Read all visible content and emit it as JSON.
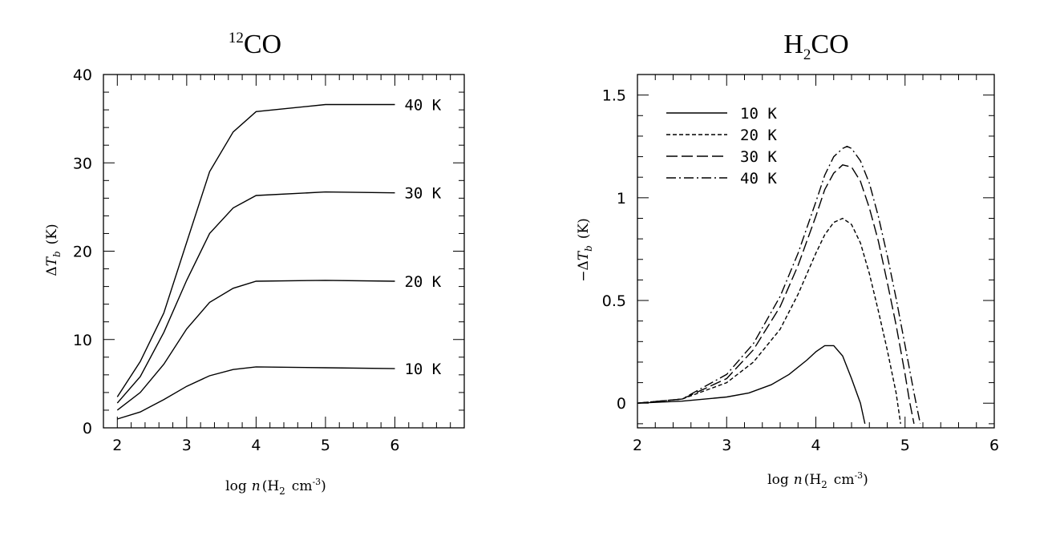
{
  "chart_data": [
    {
      "type": "line",
      "title": "12CO",
      "title_parts": {
        "sup": "12",
        "main": "CO"
      },
      "xlabel": "log n(H2 cm-3)",
      "xlabel_parts": {
        "log": "log",
        "n": "n",
        "open": "(H",
        "sub": "2",
        "cm": "cm",
        "sup": "-3",
        "close": ")"
      },
      "ylabel": "ΔTb (K)",
      "ylabel_parts": {
        "delta": "Δ",
        "T": "T",
        "sub": "b",
        "unit": "(K)"
      },
      "xlim": [
        1.8,
        7.0
      ],
      "ylim": [
        0,
        40
      ],
      "xticks": [
        "2",
        "3",
        "4",
        "5",
        "6"
      ],
      "yticks": [
        "0",
        "10",
        "20",
        "30",
        "40"
      ],
      "series": [
        {
          "name": "10 K",
          "x": [
            2,
            2.33,
            2.67,
            3,
            3.33,
            3.67,
            4,
            5,
            6
          ],
          "values": [
            1.0,
            1.8,
            3.2,
            4.7,
            5.9,
            6.6,
            6.9,
            6.8,
            6.7
          ]
        },
        {
          "name": "20 K",
          "x": [
            2,
            2.33,
            2.67,
            3,
            3.33,
            3.67,
            4,
            5,
            6
          ],
          "values": [
            2.0,
            4.0,
            7.2,
            11.2,
            14.2,
            15.8,
            16.6,
            16.7,
            16.6
          ]
        },
        {
          "name": "30 K",
          "x": [
            2,
            2.33,
            2.67,
            3,
            3.33,
            3.67,
            4,
            5,
            6
          ],
          "values": [
            2.8,
            5.8,
            10.8,
            16.7,
            22.0,
            24.9,
            26.3,
            26.7,
            26.6
          ]
        },
        {
          "name": "40 K",
          "x": [
            2,
            2.33,
            2.67,
            3,
            3.33,
            3.67,
            4,
            5,
            6
          ],
          "values": [
            3.5,
            7.5,
            13.0,
            21.0,
            29.0,
            33.5,
            35.8,
            36.6,
            36.6
          ]
        }
      ]
    },
    {
      "type": "line",
      "title": "H2CO",
      "title_parts": {
        "main1": "H",
        "sub": "2",
        "main2": "CO"
      },
      "xlabel": "log n(H2 cm-3)",
      "xlabel_parts": {
        "log": "log",
        "n": "n",
        "open": "(H",
        "sub": "2",
        "cm": "cm",
        "sup": "-3",
        "close": ")"
      },
      "ylabel": "-ΔTb (K)",
      "ylabel_parts": {
        "delta": "−Δ",
        "T": "T",
        "sub": "b",
        "unit": "(K)"
      },
      "xlim": [
        2,
        6
      ],
      "ylim": [
        -0.12,
        1.6
      ],
      "xticks": [
        "2",
        "3",
        "4",
        "5",
        "6"
      ],
      "yticks": [
        "0",
        "0.5",
        "1",
        "1.5"
      ],
      "legend_position": "top-left",
      "series": [
        {
          "name": "10 K",
          "style": "solid",
          "x": [
            2.0,
            2.5,
            3.0,
            3.25,
            3.5,
            3.7,
            3.9,
            4.0,
            4.1,
            4.2,
            4.3,
            4.4,
            4.5,
            4.55
          ],
          "values": [
            0.0,
            0.01,
            0.03,
            0.05,
            0.09,
            0.14,
            0.21,
            0.25,
            0.28,
            0.28,
            0.23,
            0.12,
            0.0,
            -0.1
          ]
        },
        {
          "name": "20 K",
          "style": "dashed",
          "x": [
            2.0,
            2.5,
            3.0,
            3.3,
            3.6,
            3.8,
            4.0,
            4.1,
            4.2,
            4.3,
            4.4,
            4.5,
            4.6,
            4.7,
            4.8,
            4.9,
            4.95
          ],
          "values": [
            0.0,
            0.02,
            0.1,
            0.2,
            0.36,
            0.53,
            0.73,
            0.82,
            0.88,
            0.9,
            0.87,
            0.78,
            0.63,
            0.45,
            0.26,
            0.05,
            -0.1
          ]
        },
        {
          "name": "30 K",
          "style": "longdash",
          "x": [
            2.0,
            2.5,
            3.0,
            3.3,
            3.6,
            3.8,
            4.0,
            4.1,
            4.2,
            4.3,
            4.4,
            4.5,
            4.6,
            4.7,
            4.8,
            4.9,
            5.0,
            5.05,
            5.1
          ],
          "values": [
            0.0,
            0.02,
            0.12,
            0.26,
            0.47,
            0.67,
            0.91,
            1.04,
            1.12,
            1.16,
            1.15,
            1.08,
            0.95,
            0.79,
            0.59,
            0.38,
            0.14,
            0.01,
            -0.1
          ]
        },
        {
          "name": "40 K",
          "style": "dashdot",
          "x": [
            2.0,
            2.5,
            3.0,
            3.3,
            3.6,
            3.8,
            4.0,
            4.1,
            4.2,
            4.3,
            4.35,
            4.4,
            4.5,
            4.6,
            4.7,
            4.8,
            4.9,
            5.0,
            5.1,
            5.17
          ],
          "values": [
            0.0,
            0.02,
            0.14,
            0.29,
            0.52,
            0.73,
            0.98,
            1.11,
            1.2,
            1.24,
            1.25,
            1.24,
            1.18,
            1.07,
            0.91,
            0.72,
            0.51,
            0.28,
            0.05,
            -0.1
          ]
        }
      ]
    }
  ]
}
